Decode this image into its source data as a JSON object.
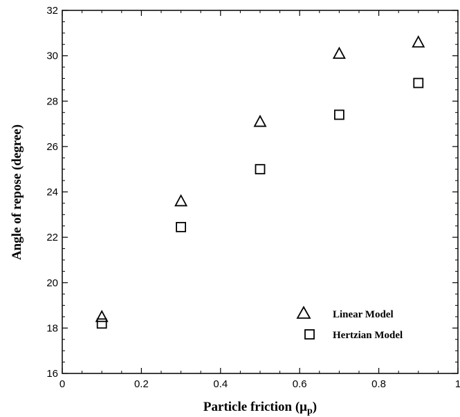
{
  "chart_data": {
    "type": "scatter",
    "xlabel": "Particle friction (μ",
    "xlabel_sub": "p",
    "xlabel_close": ")",
    "ylabel": "Angle of repose (degree)",
    "xlim": [
      0,
      1
    ],
    "ylim": [
      16,
      32
    ],
    "xticks": [
      0,
      0.2,
      0.4,
      0.6,
      0.8,
      1
    ],
    "xtick_labels": [
      "0",
      "0.2",
      "0.4",
      "0.6",
      "0.8",
      "1"
    ],
    "yticks": [
      16,
      18,
      20,
      22,
      24,
      26,
      28,
      30,
      32
    ],
    "ytick_labels": [
      "16",
      "18",
      "20",
      "22",
      "24",
      "26",
      "28",
      "30",
      "32"
    ],
    "grid": false,
    "legend_position": "bottom-right",
    "series": [
      {
        "name": "Linear Model",
        "marker": "triangle",
        "color": "#000000",
        "x": [
          0.1,
          0.3,
          0.5,
          0.7,
          0.9
        ],
        "y": [
          18.5,
          23.6,
          27.1,
          30.1,
          30.6
        ]
      },
      {
        "name": "Hertzian Model",
        "marker": "square",
        "color": "#000000",
        "x": [
          0.1,
          0.3,
          0.5,
          0.7,
          0.9
        ],
        "y": [
          18.2,
          22.45,
          25.0,
          27.4,
          28.8
        ]
      }
    ]
  }
}
